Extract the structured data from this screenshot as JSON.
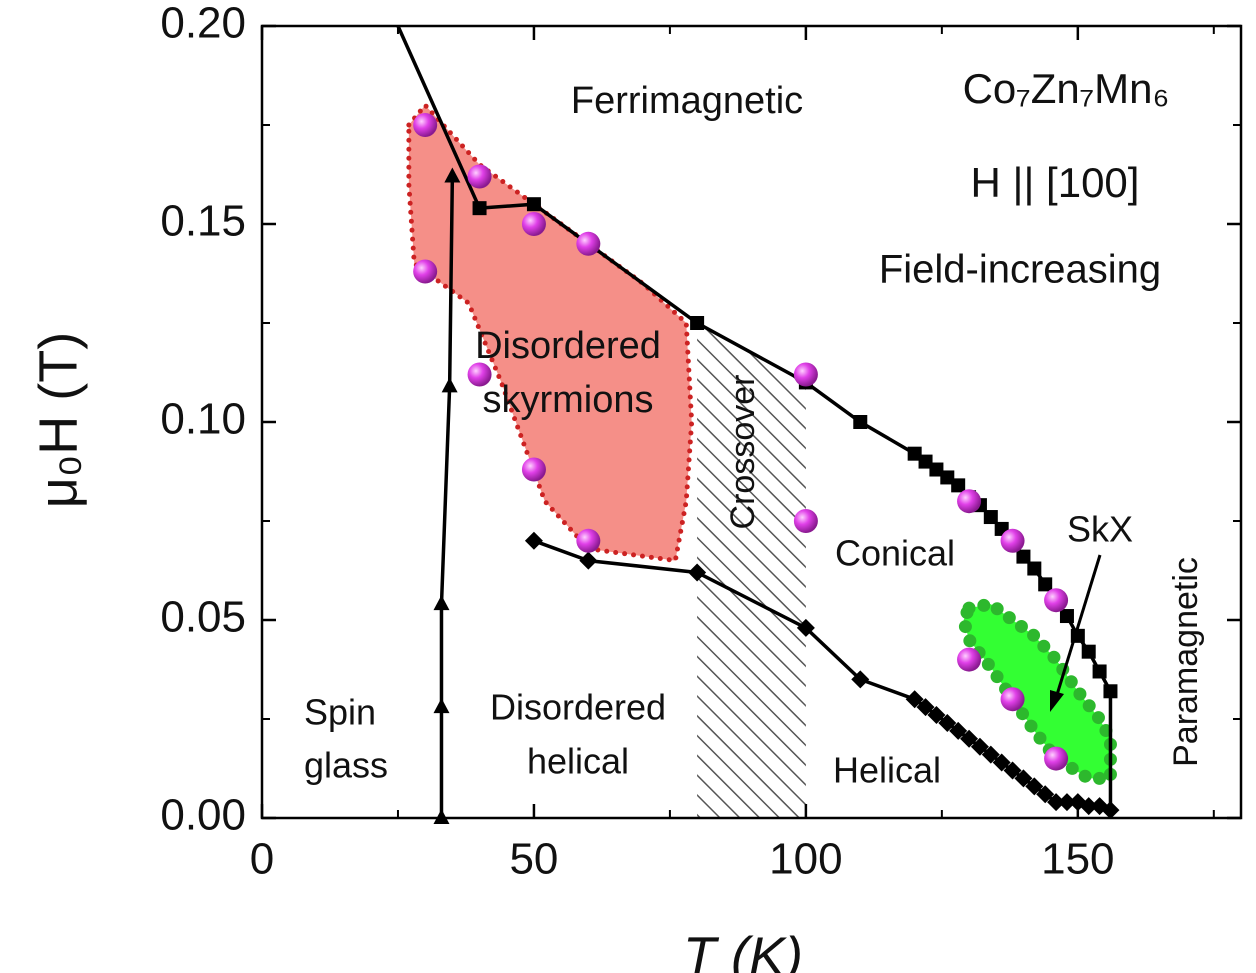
{
  "chart_data": {
    "type": "line",
    "xlabel": "T (K)",
    "ylabel": "μ₀H (T)",
    "xlim": [
      0,
      180
    ],
    "ylim": [
      0,
      0.2
    ],
    "xticks": [
      0,
      50,
      100,
      150
    ],
    "yticks": [
      {
        "value": 0,
        "label": "0.00"
      },
      {
        "value": 0.05,
        "label": "0.05"
      },
      {
        "value": 0.1,
        "label": "0.10"
      },
      {
        "value": 0.15,
        "label": "0.15"
      },
      {
        "value": 0.2,
        "label": "0.20"
      }
    ],
    "xminorticks": [
      25,
      75,
      125,
      175
    ],
    "yminorticks": [
      0.025,
      0.075,
      0.125,
      0.175
    ],
    "annotations": [
      "Ferrimagnetic",
      "Co₇Zn₇Mn₆",
      "H || [100]",
      "Field-increasing",
      "Disordered",
      "skyrmions",
      "Crossover",
      "Conical",
      "SkX",
      "Paramagnetic",
      "Spin",
      "glass",
      "Disordered",
      "helical",
      "Helical"
    ],
    "series": [
      {
        "style": "region",
        "hatch": true,
        "color": "#555555",
        "x": [
          80,
          100,
          100,
          80
        ],
        "values": [
          0,
          0,
          0.11,
          0.125
        ]
      },
      {
        "style": "region",
        "fill": "#f58f88",
        "color": "#cc2222",
        "edge": "dotted",
        "x": [
          27,
          30,
          40,
          50,
          60,
          70,
          78,
          79,
          78,
          76,
          60,
          52,
          44,
          38,
          28,
          27
        ],
        "values": [
          0.175,
          0.18,
          0.165,
          0.155,
          0.145,
          0.135,
          0.125,
          0.1,
          0.08,
          0.065,
          0.068,
          0.08,
          0.11,
          0.13,
          0.14,
          0.16
        ]
      },
      {
        "style": "region",
        "fill": "#33ff33",
        "color": "#2db82d",
        "edge": "dots",
        "x": [
          130,
          134,
          138,
          142,
          146,
          150,
          154,
          156,
          156,
          152,
          146,
          142,
          138,
          134,
          130,
          129
        ],
        "values": [
          0.053,
          0.054,
          0.05,
          0.046,
          0.04,
          0.032,
          0.025,
          0.02,
          0.01,
          0.01,
          0.015,
          0.022,
          0.03,
          0.038,
          0.045,
          0.05
        ]
      },
      {
        "style": "line",
        "color": "#000000",
        "marker": "none",
        "x": [
          25,
          40
        ],
        "values": [
          0.2,
          0.154
        ]
      },
      {
        "style": "line",
        "color": "#000000",
        "marker": "square",
        "x": [
          40,
          50,
          80,
          100,
          110,
          120,
          122,
          124,
          126,
          128,
          130,
          132,
          134,
          136,
          138,
          140,
          142,
          144,
          146,
          148,
          150,
          152,
          154,
          156
        ],
        "values": [
          0.154,
          0.155,
          0.125,
          0.11,
          0.1,
          0.092,
          0.09,
          0.088,
          0.086,
          0.084,
          0.081,
          0.079,
          0.076,
          0.073,
          0.07,
          0.066,
          0.063,
          0.059,
          0.055,
          0.051,
          0.046,
          0.042,
          0.037,
          0.032
        ]
      },
      {
        "style": "line",
        "color": "#000000",
        "marker": "none",
        "x": [
          156,
          156
        ],
        "values": [
          0.032,
          0.003
        ]
      },
      {
        "style": "line",
        "color": "#000000",
        "marker": "diamond",
        "x": [
          50,
          60,
          80,
          100,
          110,
          120,
          122,
          124,
          126,
          128,
          130,
          132,
          134,
          136,
          138,
          140,
          142,
          144,
          146,
          148,
          150,
          152,
          154,
          156
        ],
        "values": [
          0.07,
          0.065,
          0.062,
          0.048,
          0.035,
          0.03,
          0.028,
          0.026,
          0.024,
          0.022,
          0.02,
          0.018,
          0.016,
          0.014,
          0.012,
          0.01,
          0.008,
          0.006,
          0.004,
          0.004,
          0.004,
          0.003,
          0.003,
          0.002
        ]
      },
      {
        "style": "line",
        "color": "#000000",
        "marker": "triangle",
        "x": [
          33,
          33,
          33,
          34.5,
          35
        ],
        "values": [
          0,
          0.028,
          0.054,
          0.109,
          0.162
        ]
      },
      {
        "style": "scatter",
        "color": "#e040e8",
        "marker": "sphere",
        "x": [
          30,
          30,
          40,
          40,
          50,
          50,
          60,
          60,
          100,
          100,
          130,
          130,
          138,
          138,
          146,
          146
        ],
        "values": [
          0.175,
          0.138,
          0.162,
          0.112,
          0.15,
          0.088,
          0.145,
          0.07,
          0.112,
          0.075,
          0.08,
          0.04,
          0.07,
          0.03,
          0.055,
          0.015
        ]
      }
    ]
  }
}
